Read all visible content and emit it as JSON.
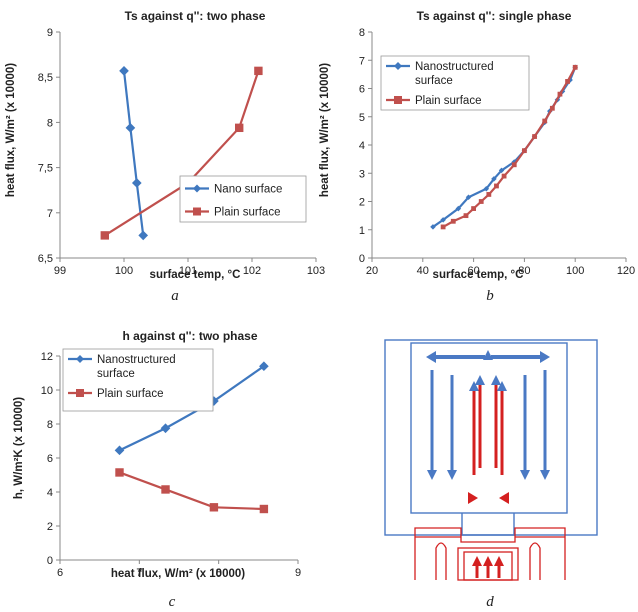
{
  "chart_data": [
    {
      "panel": "a",
      "type": "line",
      "title": "Ts against q'': two phase",
      "xlabel": "surface temp, °C",
      "ylabel": "heat flux, W/m² (x 10000)",
      "xlim": [
        99,
        103
      ],
      "ylim": [
        6.5,
        9
      ],
      "xticks": [
        "99",
        "100",
        "101",
        "102",
        "103"
      ],
      "yticks": [
        "6,5",
        "7",
        "7,5",
        "8",
        "8,5",
        "9"
      ],
      "legend": "bottom-right",
      "series": [
        {
          "name": "Nano surface",
          "color": "#3f78bf",
          "marker": "diamond",
          "x": [
            100.0,
            100.1,
            100.2,
            100.3
          ],
          "y": [
            8.57,
            7.94,
            7.33,
            6.75
          ]
        },
        {
          "name": "Plain surface",
          "color": "#c0504d",
          "marker": "square",
          "x": [
            99.7,
            101.0,
            101.8,
            102.1
          ],
          "y": [
            6.75,
            7.33,
            7.94,
            8.57
          ]
        }
      ]
    },
    {
      "panel": "b",
      "type": "line",
      "title": "Ts against q'': single phase",
      "xlabel": "surface temp, °C",
      "ylabel": "heat flux, W/m² (x 10000)",
      "xlim": [
        20,
        120
      ],
      "ylim": [
        0,
        8
      ],
      "xticks": [
        "20",
        "40",
        "60",
        "80",
        "100",
        "120"
      ],
      "yticks": [
        "0",
        "1",
        "2",
        "3",
        "4",
        "5",
        "6",
        "7",
        "8"
      ],
      "legend": "top-left",
      "series": [
        {
          "name": "Nanostructured surface",
          "color": "#3f78bf",
          "marker": "diamond",
          "x": [
            44,
            48,
            54,
            58,
            65,
            68,
            71,
            76,
            80,
            84,
            88,
            90,
            93,
            95,
            98,
            100
          ],
          "y": [
            1.1,
            1.35,
            1.75,
            2.15,
            2.45,
            2.8,
            3.1,
            3.4,
            3.8,
            4.3,
            4.8,
            5.2,
            5.6,
            5.9,
            6.3,
            6.75
          ]
        },
        {
          "name": "Plain surface",
          "color": "#c0504d",
          "marker": "square",
          "x": [
            48,
            52,
            57,
            60,
            63,
            66,
            69,
            72,
            76,
            80,
            84,
            88,
            91,
            94,
            97,
            100
          ],
          "y": [
            1.1,
            1.3,
            1.5,
            1.75,
            2.0,
            2.25,
            2.55,
            2.9,
            3.3,
            3.8,
            4.3,
            4.85,
            5.3,
            5.8,
            6.25,
            6.75
          ]
        }
      ]
    },
    {
      "panel": "c",
      "type": "line",
      "title": "h against q'': two phase",
      "xlabel": "heat flux, W/m² (x 10000)",
      "ylabel": "h, W/m²K (x 10000)",
      "xlim": [
        6,
        9
      ],
      "ylim": [
        0,
        12
      ],
      "xticks": [
        "6",
        "7",
        "8",
        "9"
      ],
      "yticks": [
        "0",
        "2",
        "4",
        "6",
        "8",
        "10",
        "12"
      ],
      "legend": "top-left",
      "series": [
        {
          "name": "Nanostructured surface",
          "color": "#3f78bf",
          "marker": "diamond",
          "x": [
            6.75,
            7.33,
            7.94,
            8.57
          ],
          "y": [
            6.45,
            7.75,
            9.35,
            11.4
          ]
        },
        {
          "name": "Plain surface",
          "color": "#c0504d",
          "marker": "square",
          "x": [
            6.75,
            7.33,
            7.94,
            8.57
          ],
          "y": [
            5.15,
            4.15,
            3.1,
            3.0
          ]
        }
      ]
    }
  ],
  "panel_labels": [
    "a",
    "b",
    "c",
    "d"
  ],
  "colors": {
    "blue": "#4a79c4",
    "red": "#d42020",
    "axis": "#888888"
  }
}
